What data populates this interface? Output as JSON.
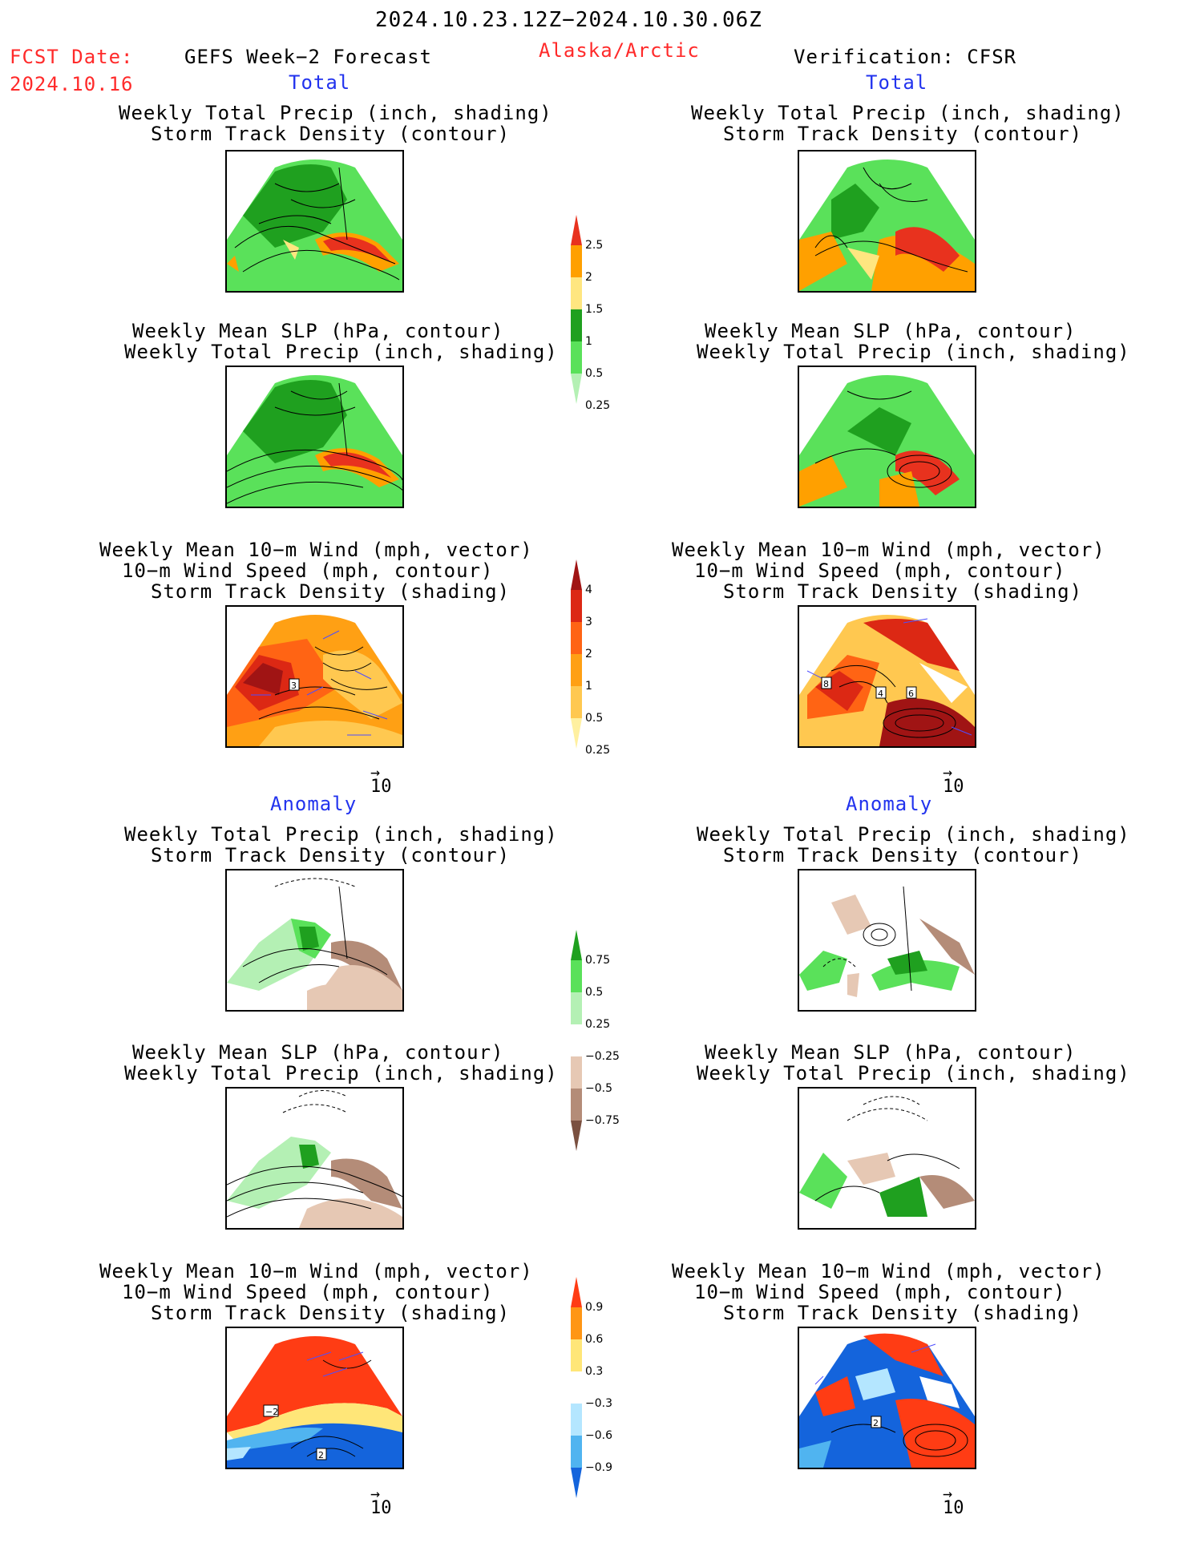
{
  "header": {
    "date_range": "2024.10.23.12Z−2024.10.30.06Z",
    "fcst_label": "FCST Date:",
    "fcst_date": "2024.10.16",
    "model": "GEFS Week−2 Forecast",
    "region": "Alaska/Arctic",
    "verification": "Verification: CFSR"
  },
  "sections": {
    "total": "Total",
    "anomaly": "Anomaly"
  },
  "titles": {
    "precip_track": [
      "Weekly Total Precip (inch, shading)",
      "Storm Track Density (contour)"
    ],
    "slp_precip": [
      "Weekly Mean SLP (hPa, contour)",
      "Weekly Total Precip (inch, shading)"
    ],
    "wind_track": [
      "Weekly Mean 10−m Wind (mph, vector)",
      "10−m Wind Speed (mph, contour)",
      "Storm Track Density (shading)"
    ]
  },
  "vector_ref": "10",
  "contour_labels": {
    "fc_total_wind": [
      "3"
    ],
    "ver_total_wind": [
      "8",
      "4",
      "6"
    ],
    "fc_anom_wind": [
      "−2",
      "2"
    ],
    "ver_anom_wind": [
      "2"
    ]
  },
  "colorbars": {
    "precip_total": {
      "labels": [
        "2.5",
        "2",
        "1.5",
        "1",
        "0.5",
        "0.25"
      ],
      "colors": [
        "#e8321e",
        "#ffa000",
        "#ffe680",
        "#1fa01f",
        "#5ae15a",
        "#b4f0b4"
      ]
    },
    "track_total": {
      "labels": [
        "4",
        "3",
        "2",
        "1",
        "0.5",
        "0.25"
      ],
      "colors": [
        "#a01414",
        "#dc2814",
        "#ff6414",
        "#ffa014",
        "#ffc850",
        "#fff0a0"
      ]
    },
    "precip_anom": {
      "labels": [
        "0.75",
        "0.5",
        "0.25",
        "−0.25",
        "−0.5",
        "−0.75"
      ],
      "colors": [
        "#1fa01f",
        "#5ae15a",
        "#b4f0b4",
        "#ffffff",
        "#e6c8b4",
        "#b48c78",
        "#7a5040"
      ]
    },
    "track_anom": {
      "labels": [
        "0.9",
        "0.6",
        "0.3",
        "−0.3",
        "−0.6",
        "−0.9"
      ],
      "colors": [
        "#ff3c14",
        "#ff9614",
        "#ffe678",
        "#ffffff",
        "#b4e6ff",
        "#50b4f0",
        "#1464dc"
      ]
    }
  },
  "map_colors": {
    "green_dark": "#1fa01f",
    "green_mid": "#5ae15a",
    "green_light": "#b4f0b4",
    "orange": "#ffa000",
    "red": "#e8321e",
    "brown_dark": "#7a5040",
    "brown_light": "#e6c8b4",
    "vector": "#4d4dff"
  }
}
